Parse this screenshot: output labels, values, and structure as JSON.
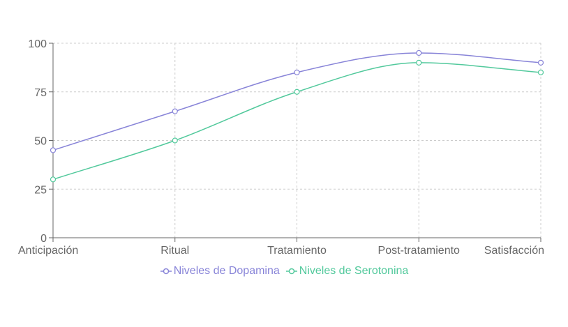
{
  "chart_data": {
    "type": "line",
    "categories": [
      "Anticipación",
      "Ritual",
      "Tratamiento",
      "Post-tratamiento",
      "Satisfacción"
    ],
    "series": [
      {
        "name": "Niveles de Dopamina",
        "color": "#8884d8",
        "values": [
          45,
          65,
          85,
          95,
          90
        ]
      },
      {
        "name": "Niveles de Serotonina",
        "color": "#52c99c",
        "values": [
          30,
          50,
          75,
          90,
          85
        ]
      }
    ],
    "ylim": [
      0,
      100
    ],
    "yticks": [
      0,
      25,
      50,
      75,
      100
    ],
    "grid": true
  }
}
